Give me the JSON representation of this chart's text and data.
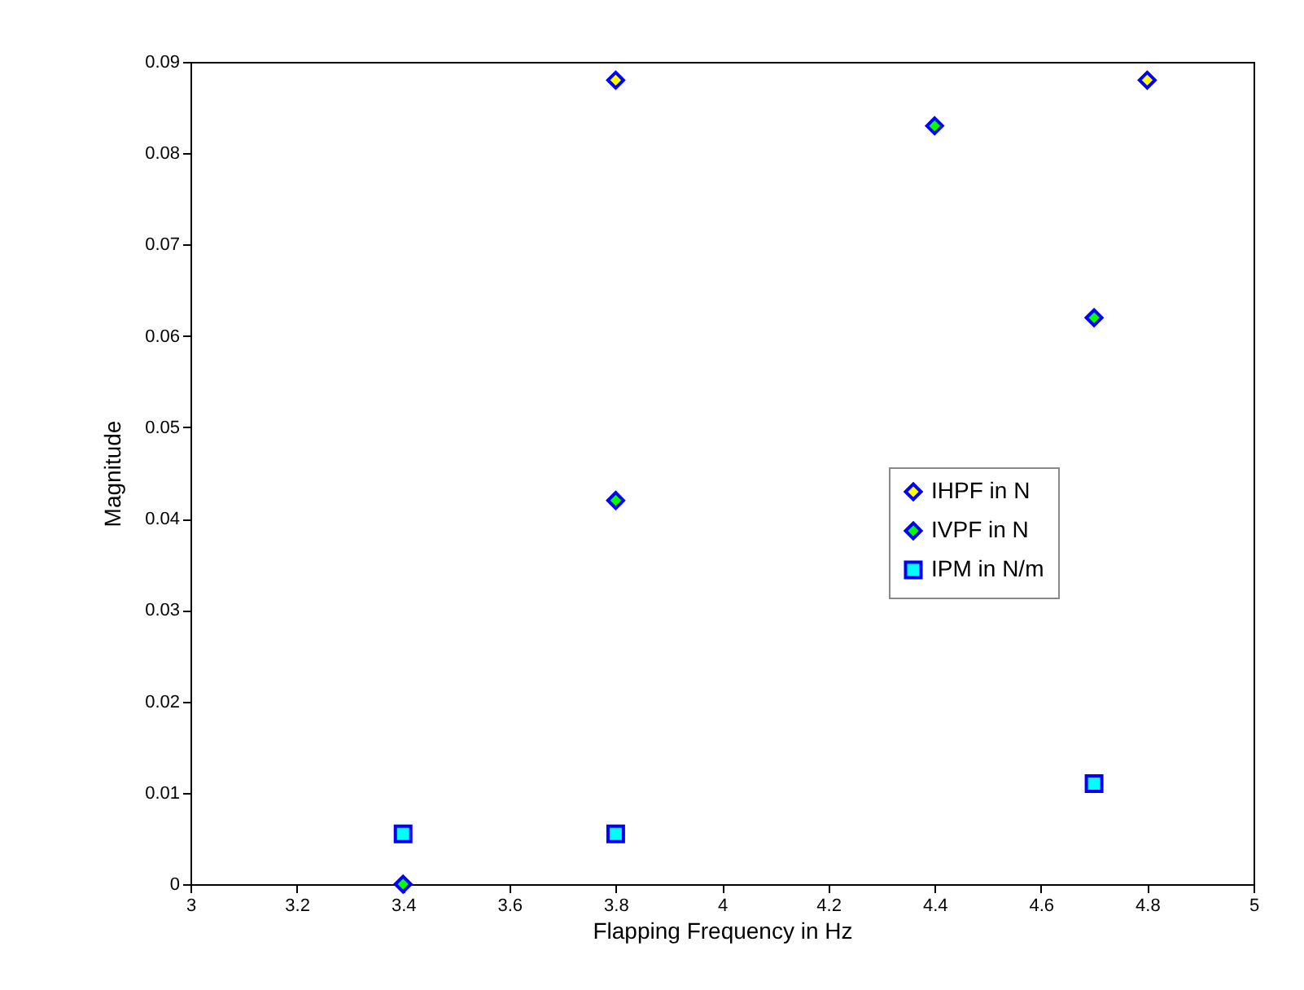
{
  "chart_data": {
    "type": "scatter",
    "xlabel": "Flapping Frequency in Hz",
    "ylabel": "Magnitude",
    "xlim": [
      3,
      5
    ],
    "xticks": [
      3,
      3.2,
      3.4,
      3.6,
      3.8,
      4,
      4.2,
      4.4,
      4.6,
      4.8,
      5
    ],
    "ylim": [
      0,
      0.09
    ],
    "yticks": [
      0,
      0.01,
      0.02,
      0.03,
      0.04,
      0.05,
      0.06,
      0.07,
      0.08,
      0.09
    ],
    "grid": false,
    "legend": "right",
    "series": [
      {
        "name": "IHPF in N",
        "color": "#ffff00",
        "marker": "diamond",
        "x": [
          3.8,
          4.8
        ],
        "values": [
          0.088,
          0.088
        ]
      },
      {
        "name": "IVPF in N",
        "color": "#00ff00",
        "marker": "diamond",
        "x": [
          3.4,
          3.8,
          4.4,
          4.7
        ],
        "values": [
          0,
          0.042,
          0.083,
          0.062
        ]
      },
      {
        "name": "IPM in N/m",
        "color": "#00ffff",
        "marker": "square",
        "x": [
          3.4,
          3.8,
          4.7
        ],
        "values": [
          0.0055,
          0.0055,
          0.011
        ]
      }
    ]
  }
}
